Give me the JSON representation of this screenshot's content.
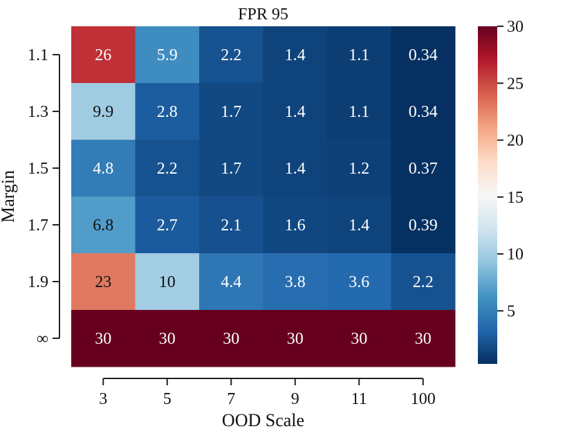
{
  "chart_data": {
    "type": "heatmap",
    "title": "FPR 95",
    "xlabel": "OOD Scale",
    "ylabel": "Margin",
    "x_categories": [
      "3",
      "5",
      "7",
      "9",
      "11",
      "100"
    ],
    "y_categories": [
      "1.1",
      "1.3",
      "1.5",
      "1.7",
      "1.9",
      "∞"
    ],
    "values": [
      [
        26,
        5.9,
        2.2,
        1.4,
        1.1,
        0.34
      ],
      [
        9.9,
        2.8,
        1.7,
        1.4,
        1.1,
        0.34
      ],
      [
        4.8,
        2.2,
        1.7,
        1.4,
        1.2,
        0.37
      ],
      [
        6.8,
        2.7,
        2.1,
        1.6,
        1.4,
        0.39
      ],
      [
        23,
        10,
        4.4,
        3.8,
        3.6,
        2.2
      ],
      [
        30,
        30,
        30,
        30,
        30,
        30
      ]
    ],
    "value_labels": [
      [
        "26",
        "5.9",
        "2.2",
        "1.4",
        "1.1",
        "0.34"
      ],
      [
        "9.9",
        "2.8",
        "1.7",
        "1.4",
        "1.1",
        "0.34"
      ],
      [
        "4.8",
        "2.2",
        "1.7",
        "1.4",
        "1.2",
        "0.37"
      ],
      [
        "6.8",
        "2.7",
        "2.1",
        "1.6",
        "1.4",
        "0.39"
      ],
      [
        "23",
        "10",
        "4.4",
        "3.8",
        "3.6",
        "2.2"
      ],
      [
        "30",
        "30",
        "30",
        "30",
        "30",
        "30"
      ]
    ],
    "colorbar": {
      "colormap": "RdBu_r",
      "range": [
        0.34,
        30
      ],
      "ticks": [
        5,
        10,
        15,
        20,
        25,
        30
      ],
      "tick_labels": [
        "5",
        "10",
        "15",
        "20",
        "25",
        "30"
      ]
    },
    "colormap_stops": [
      "#053061",
      "#2166ac",
      "#4393c3",
      "#92c5de",
      "#d1e5f0",
      "#f7f7f7",
      "#fddbc7",
      "#f4a582",
      "#d6604d",
      "#b2182b",
      "#67001f"
    ]
  }
}
